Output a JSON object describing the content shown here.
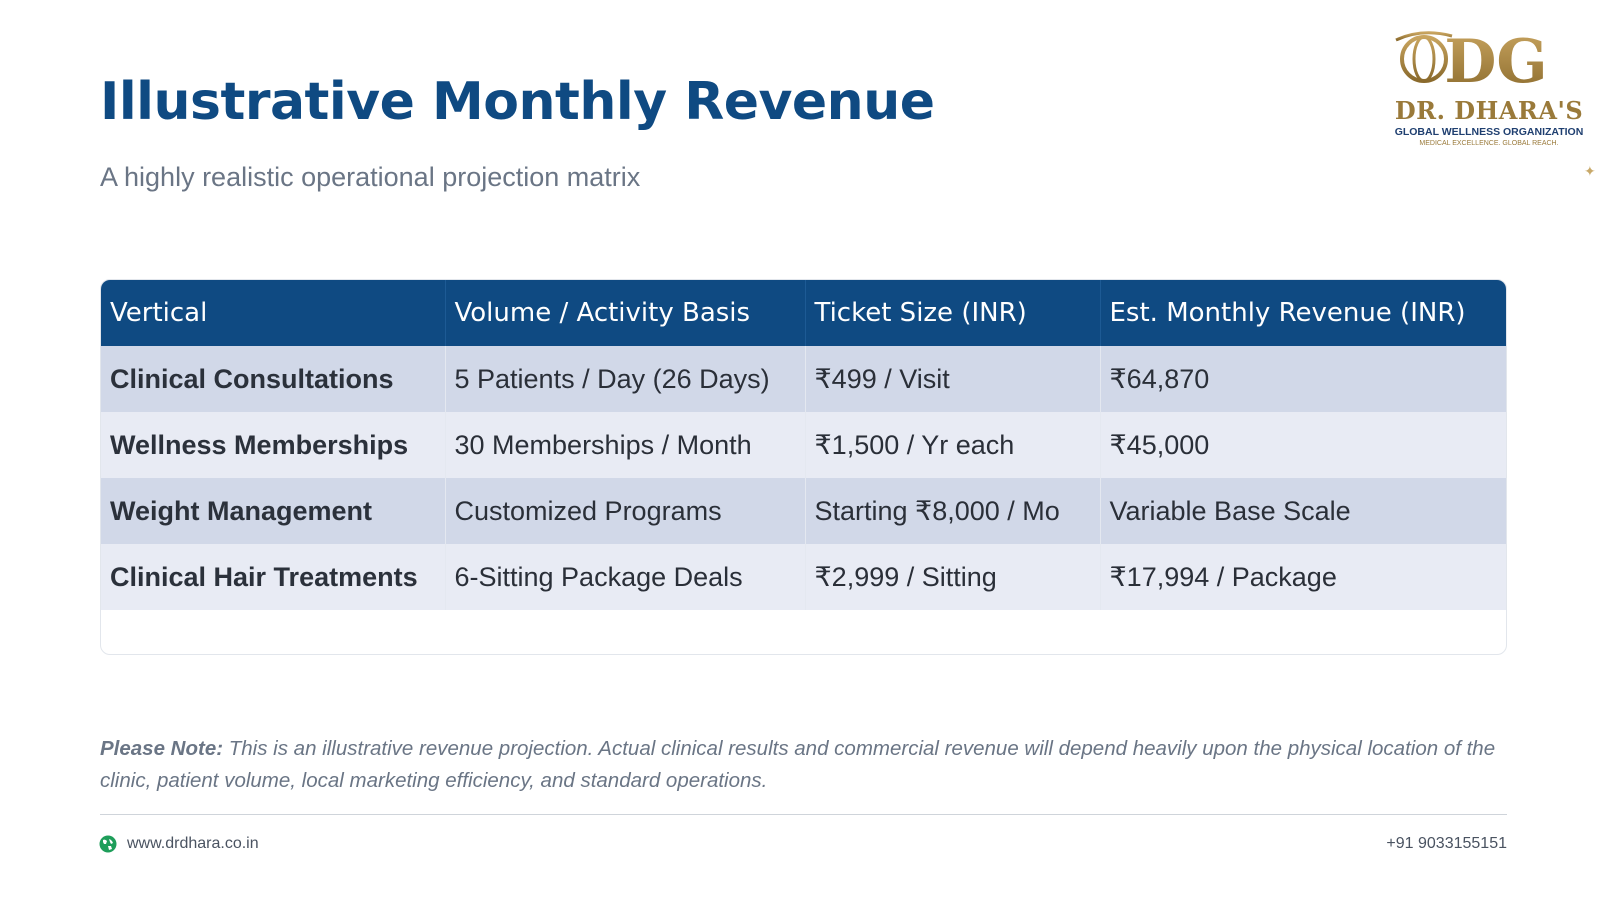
{
  "header": {
    "title": "Illustrative Monthly Revenue",
    "subtitle": "A highly realistic operational projection matrix"
  },
  "logo": {
    "monogram": "DG",
    "name": "DR. DHARA'S",
    "organization": "GLOBAL WELLNESS ORGANIZATION",
    "tagline": "MEDICAL EXCELLENCE. GLOBAL REACH."
  },
  "table": {
    "columns": [
      "Vertical",
      "Volume / Activity Basis",
      "Ticket Size (INR)",
      "Est. Monthly Revenue (INR)"
    ],
    "rows": [
      [
        "Clinical Consultations",
        "5 Patients / Day (26 Days)",
        "₹499 / Visit",
        "₹64,870"
      ],
      [
        "Wellness Memberships",
        "30 Memberships / Month",
        "₹1,500 / Yr each",
        "₹45,000"
      ],
      [
        "Weight Management",
        "Customized Programs",
        "Starting ₹8,000 / Mo",
        "Variable Base Scale"
      ],
      [
        "Clinical Hair Treatments",
        "6-Sitting Package Deals",
        "₹2,999 / Sitting",
        "₹17,994 / Package"
      ]
    ]
  },
  "note": {
    "label": "Please Note:",
    "text": " This is an illustrative revenue projection. Actual clinical results and commercial revenue will depend heavily upon the physical location of the clinic, patient volume, local marketing efficiency, and standard operations."
  },
  "footer": {
    "website": "www.drdhara.co.in",
    "phone": "+91 9033155151"
  },
  "colors": {
    "primary": "#0f4a82",
    "gold": "#9a7a3a",
    "row_odd": "#d1d8e8",
    "row_even": "#e8ebf4",
    "globe": "#1e9e5a"
  },
  "icons": [
    "globe-icon",
    "sparkle-icon",
    "logo-globe-icon"
  ]
}
